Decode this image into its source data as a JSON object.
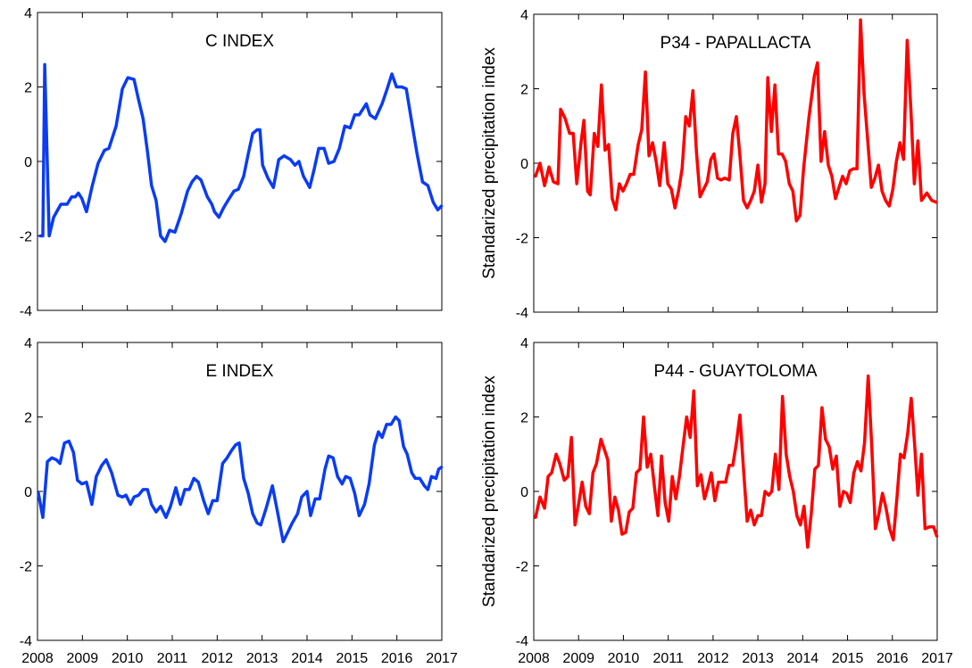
{
  "chart_data": [
    {
      "type": "line",
      "title": "C INDEX",
      "color": "#0a3cf5",
      "show_xtick_labels": false,
      "xlim": [
        2008,
        2017
      ],
      "xticks": [
        2008,
        2009,
        2010,
        2011,
        2012,
        2013,
        2014,
        2015,
        2016,
        2017
      ],
      "ylim": [
        -4,
        4
      ],
      "yticks": [
        -4,
        -2,
        0,
        2,
        4
      ],
      "x": [
        2008.06,
        2008.12,
        2008.16,
        2008.26,
        2008.36,
        2008.52,
        2008.66,
        2008.76,
        2008.84,
        2008.91,
        2008.99,
        2009.09,
        2009.21,
        2009.35,
        2009.49,
        2009.59,
        2009.75,
        2009.89,
        2010.01,
        2010.15,
        2010.25,
        2010.35,
        2010.45,
        2010.54,
        2010.64,
        2010.74,
        2010.84,
        2010.94,
        2011.06,
        2011.2,
        2011.34,
        2011.44,
        2011.54,
        2011.64,
        2011.78,
        2011.88,
        2011.94,
        2012.04,
        2012.14,
        2012.24,
        2012.37,
        2012.47,
        2012.59,
        2012.69,
        2012.79,
        2012.89,
        2012.95,
        2013.01,
        2013.13,
        2013.25,
        2013.37,
        2013.49,
        2013.63,
        2013.73,
        2013.82,
        2013.92,
        2014.06,
        2014.16,
        2014.26,
        2014.38,
        2014.48,
        2014.6,
        2014.72,
        2014.84,
        2014.96,
        2015.06,
        2015.16,
        2015.32,
        2015.4,
        2015.52,
        2015.67,
        2015.77,
        2015.89,
        2015.99,
        2016.11,
        2016.21,
        2016.31,
        2016.45,
        2016.57,
        2016.69,
        2016.81,
        2016.91,
        2016.99
      ],
      "values": [
        -2.0,
        -2.0,
        2.6,
        -2.0,
        -1.5,
        -1.15,
        -1.15,
        -0.95,
        -0.95,
        -0.85,
        -1.0,
        -1.35,
        -0.7,
        -0.05,
        0.3,
        0.35,
        0.95,
        1.95,
        2.25,
        2.2,
        1.65,
        1.15,
        0.25,
        -0.65,
        -1.05,
        -2.0,
        -2.15,
        -1.85,
        -1.9,
        -1.4,
        -0.8,
        -0.55,
        -0.4,
        -0.5,
        -0.95,
        -1.15,
        -1.35,
        -1.5,
        -1.25,
        -1.05,
        -0.8,
        -0.75,
        -0.4,
        0.2,
        0.75,
        0.85,
        0.85,
        -0.1,
        -0.45,
        -0.7,
        0.05,
        0.15,
        0.05,
        -0.1,
        0.0,
        -0.4,
        -0.7,
        -0.2,
        0.35,
        0.35,
        -0.05,
        0.0,
        0.35,
        0.95,
        0.9,
        1.25,
        1.25,
        1.55,
        1.25,
        1.15,
        1.55,
        1.9,
        2.35,
        2.0,
        2.0,
        1.95,
        1.2,
        0.2,
        -0.55,
        -0.65,
        -1.1,
        -1.3,
        -1.2
      ]
    },
    {
      "type": "line",
      "title": "P34 - PAPALLACTA",
      "ylabel": "Standarized precipitation index",
      "color": "#ff0000",
      "show_xtick_labels": false,
      "xlim": [
        2008,
        2017
      ],
      "xticks": [
        2008,
        2009,
        2010,
        2011,
        2012,
        2013,
        2014,
        2015,
        2016,
        2017
      ],
      "ylim": [
        -4,
        4
      ],
      "yticks": [
        -4,
        -2,
        0,
        2,
        4
      ],
      "x": [
        2008.04,
        2008.14,
        2008.24,
        2008.34,
        2008.44,
        2008.54,
        2008.6,
        2008.7,
        2008.8,
        2008.88,
        2008.96,
        2009.06,
        2009.12,
        2009.2,
        2009.26,
        2009.35,
        2009.43,
        2009.51,
        2009.59,
        2009.67,
        2009.75,
        2009.83,
        2009.91,
        2009.99,
        2010.07,
        2010.15,
        2010.23,
        2010.33,
        2010.41,
        2010.49,
        2010.57,
        2010.65,
        2010.73,
        2010.81,
        2010.91,
        2010.99,
        2011.07,
        2011.15,
        2011.23,
        2011.31,
        2011.39,
        2011.47,
        2011.55,
        2011.63,
        2011.71,
        2011.79,
        2011.87,
        2011.95,
        2012.02,
        2012.1,
        2012.18,
        2012.26,
        2012.36,
        2012.44,
        2012.52,
        2012.6,
        2012.68,
        2012.76,
        2012.84,
        2012.92,
        2013.0,
        2013.08,
        2013.16,
        2013.22,
        2013.3,
        2013.38,
        2013.46,
        2013.54,
        2013.62,
        2013.7,
        2013.78,
        2013.86,
        2013.94,
        2014.02,
        2014.14,
        2014.26,
        2014.33,
        2014.41,
        2014.49,
        2014.57,
        2014.65,
        2014.73,
        2014.81,
        2014.89,
        2014.97,
        2015.05,
        2015.13,
        2015.21,
        2015.29,
        2015.37,
        2015.45,
        2015.53,
        2015.61,
        2015.69,
        2015.77,
        2015.85,
        2015.93,
        2016.01,
        2016.09,
        2016.17,
        2016.25,
        2016.33,
        2016.41,
        2016.49,
        2016.57,
        2016.65,
        2016.77,
        2016.88,
        2016.98
      ],
      "values": [
        -0.35,
        0.0,
        -0.6,
        -0.1,
        -0.5,
        -0.55,
        1.45,
        1.2,
        0.8,
        0.8,
        -0.55,
        0.6,
        1.15,
        -0.75,
        -0.85,
        0.8,
        0.45,
        2.1,
        0.35,
        0.5,
        -0.95,
        -1.25,
        -0.55,
        -0.75,
        -0.55,
        -0.3,
        -0.3,
        0.5,
        0.9,
        2.45,
        0.2,
        0.55,
        0.05,
        -0.6,
        0.55,
        -0.55,
        -0.7,
        -1.2,
        -0.75,
        -0.15,
        1.25,
        1.0,
        1.95,
        0.3,
        -0.9,
        -0.7,
        -0.5,
        0.1,
        0.25,
        -0.4,
        -0.45,
        -0.4,
        -0.45,
        0.8,
        1.25,
        0.2,
        -1.0,
        -1.2,
        -1.0,
        -0.75,
        -0.05,
        -1.05,
        -0.55,
        2.3,
        0.85,
        2.1,
        0.25,
        0.25,
        0.05,
        -0.55,
        -0.75,
        -1.55,
        -1.4,
        -0.15,
        1.25,
        2.35,
        2.7,
        0.05,
        0.85,
        -0.05,
        -0.35,
        -0.95,
        -0.65,
        -0.35,
        -0.55,
        -0.2,
        -0.15,
        -0.15,
        3.85,
        1.85,
        0.6,
        -0.65,
        -0.4,
        -0.05,
        -0.75,
        -1.0,
        -1.15,
        -0.7,
        0.05,
        0.55,
        0.1,
        3.3,
        1.5,
        -0.55,
        0.6,
        -1.0,
        -0.8,
        -1.0,
        -1.05
      ]
    },
    {
      "type": "line",
      "title": "E INDEX",
      "color": "#0a3cf5",
      "show_xtick_labels": true,
      "xlim": [
        2008,
        2017
      ],
      "xticks": [
        2008,
        2009,
        2010,
        2011,
        2012,
        2013,
        2014,
        2015,
        2016,
        2017
      ],
      "ylim": [
        -4,
        4
      ],
      "yticks": [
        -4,
        -2,
        0,
        2,
        4
      ],
      "x": [
        2008.02,
        2008.12,
        2008.22,
        2008.32,
        2008.42,
        2008.5,
        2008.6,
        2008.7,
        2008.8,
        2008.89,
        2008.99,
        2009.09,
        2009.21,
        2009.31,
        2009.43,
        2009.53,
        2009.65,
        2009.79,
        2009.89,
        2009.97,
        2010.07,
        2010.15,
        2010.25,
        2010.35,
        2010.45,
        2010.54,
        2010.64,
        2010.74,
        2010.86,
        2010.96,
        2011.08,
        2011.18,
        2011.28,
        2011.38,
        2011.48,
        2011.58,
        2011.7,
        2011.8,
        2011.9,
        2012.0,
        2012.12,
        2012.22,
        2012.32,
        2012.41,
        2012.49,
        2012.59,
        2012.69,
        2012.79,
        2012.89,
        2012.97,
        2013.09,
        2013.23,
        2013.35,
        2013.47,
        2013.57,
        2013.67,
        2013.79,
        2013.88,
        2014.0,
        2014.08,
        2014.18,
        2014.28,
        2014.4,
        2014.48,
        2014.58,
        2014.68,
        2014.78,
        2014.86,
        2014.96,
        2015.06,
        2015.16,
        2015.28,
        2015.38,
        2015.5,
        2015.59,
        2015.67,
        2015.77,
        2015.87,
        2015.97,
        2016.05,
        2016.15,
        2016.23,
        2016.33,
        2016.41,
        2016.51,
        2016.61,
        2016.69,
        2016.77,
        2016.87,
        2016.93,
        2016.99
      ],
      "values": [
        -0.05,
        -0.7,
        0.8,
        0.9,
        0.85,
        0.75,
        1.3,
        1.35,
        1.05,
        0.3,
        0.2,
        0.25,
        -0.35,
        0.4,
        0.7,
        0.85,
        0.5,
        -0.1,
        -0.15,
        -0.1,
        -0.35,
        -0.15,
        -0.1,
        0.05,
        0.05,
        -0.35,
        -0.55,
        -0.4,
        -0.7,
        -0.4,
        0.1,
        -0.35,
        0.05,
        0.05,
        0.35,
        0.25,
        -0.25,
        -0.6,
        -0.25,
        -0.25,
        0.75,
        0.9,
        1.1,
        1.25,
        1.3,
        0.35,
        -0.05,
        -0.6,
        -0.85,
        -0.9,
        -0.45,
        0.15,
        -0.6,
        -1.35,
        -1.1,
        -0.85,
        -0.6,
        -0.15,
        0.0,
        -0.65,
        -0.2,
        -0.2,
        0.6,
        0.95,
        0.9,
        0.4,
        0.2,
        0.4,
        0.35,
        -0.05,
        -0.65,
        -0.35,
        0.2,
        1.25,
        1.6,
        1.45,
        1.8,
        1.8,
        2.0,
        1.9,
        1.2,
        1.0,
        0.5,
        0.35,
        0.35,
        0.15,
        0.05,
        0.4,
        0.35,
        0.6,
        0.65
      ]
    },
    {
      "type": "line",
      "title": "P44 - GUAYTOLOMA",
      "ylabel": "Standarized precipitation index",
      "color": "#ff0000",
      "show_xtick_labels": true,
      "xlim": [
        2008,
        2017
      ],
      "xticks": [
        2008,
        2009,
        2010,
        2011,
        2012,
        2013,
        2014,
        2015,
        2016,
        2017
      ],
      "ylim": [
        -4,
        4
      ],
      "yticks": [
        -4,
        -2,
        0,
        2,
        4
      ],
      "x": [
        2008.04,
        2008.14,
        2008.24,
        2008.32,
        2008.4,
        2008.5,
        2008.58,
        2008.68,
        2008.76,
        2008.84,
        2008.92,
        2009.0,
        2009.08,
        2009.16,
        2009.24,
        2009.32,
        2009.4,
        2009.5,
        2009.57,
        2009.65,
        2009.73,
        2009.81,
        2009.89,
        2009.97,
        2010.05,
        2010.13,
        2010.21,
        2010.29,
        2010.37,
        2010.45,
        2010.53,
        2010.61,
        2010.69,
        2010.77,
        2010.85,
        2010.93,
        2011.01,
        2011.09,
        2011.17,
        2011.25,
        2011.33,
        2011.41,
        2011.49,
        2011.57,
        2011.65,
        2011.73,
        2011.81,
        2011.89,
        2011.96,
        2012.04,
        2012.12,
        2012.2,
        2012.28,
        2012.36,
        2012.44,
        2012.52,
        2012.6,
        2012.68,
        2012.76,
        2012.84,
        2012.92,
        2013.0,
        2013.08,
        2013.16,
        2013.24,
        2013.31,
        2013.39,
        2013.47,
        2013.55,
        2013.63,
        2013.71,
        2013.79,
        2013.87,
        2013.95,
        2014.03,
        2014.11,
        2014.19,
        2014.27,
        2014.35,
        2014.43,
        2014.51,
        2014.59,
        2014.67,
        2014.75,
        2014.83,
        2014.91,
        2014.98,
        2015.06,
        2015.14,
        2015.22,
        2015.3,
        2015.38,
        2015.46,
        2015.54,
        2015.62,
        2015.7,
        2015.78,
        2015.86,
        2015.94,
        2016.02,
        2016.1,
        2016.18,
        2016.26,
        2016.34,
        2016.42,
        2016.5,
        2016.57,
        2016.65,
        2016.73,
        2016.83,
        2016.92,
        2016.99
      ],
      "values": [
        -0.7,
        -0.15,
        -0.45,
        0.4,
        0.5,
        1.0,
        0.75,
        0.3,
        0.4,
        1.45,
        -0.9,
        -0.35,
        0.25,
        -0.4,
        -0.6,
        0.5,
        0.75,
        1.4,
        1.15,
        0.85,
        -0.8,
        -0.15,
        -0.5,
        -1.15,
        -1.1,
        -0.55,
        -0.45,
        0.5,
        0.6,
        2.0,
        0.65,
        1.0,
        0.15,
        -0.65,
        0.95,
        -0.3,
        -0.8,
        0.4,
        -0.2,
        0.4,
        1.2,
        2.0,
        1.45,
        2.7,
        0.15,
        0.45,
        -0.2,
        0.15,
        0.5,
        -0.25,
        0.25,
        0.25,
        0.25,
        0.7,
        0.7,
        1.3,
        2.05,
        0.6,
        -0.8,
        -0.5,
        -0.9,
        -0.65,
        -0.65,
        0.0,
        -0.1,
        0.0,
        1.0,
        0.05,
        2.55,
        1.0,
        0.4,
        0.0,
        -0.65,
        -0.9,
        -0.4,
        -1.5,
        -0.6,
        0.6,
        0.7,
        2.25,
        1.4,
        1.2,
        0.6,
        0.95,
        -0.4,
        0.0,
        -0.05,
        -0.3,
        0.5,
        0.8,
        0.55,
        1.3,
        3.1,
        1.2,
        -1.0,
        -0.6,
        -0.05,
        -0.45,
        -1.0,
        -1.3,
        -0.2,
        1.0,
        0.9,
        1.55,
        2.5,
        1.2,
        -0.1,
        1.0,
        -1.0,
        -0.95,
        -0.95,
        -1.2
      ]
    }
  ]
}
